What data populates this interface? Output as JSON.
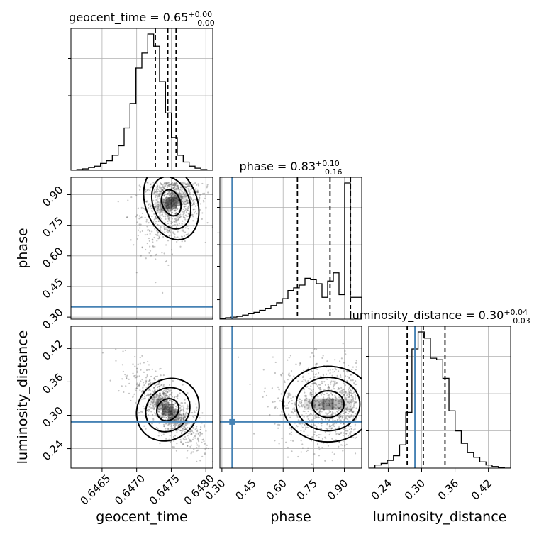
{
  "chart_data": {
    "type": "corner",
    "parameters": [
      "geocent_time",
      "phase",
      "luminosity_distance"
    ],
    "titles": [
      {
        "name": "geocent_time",
        "median": "0.65",
        "plus": "+0.00",
        "minus": "−0.00"
      },
      {
        "name": "phase",
        "median": "0.83",
        "plus": "+0.10",
        "minus": "−0.16"
      },
      {
        "name": "luminosity_distance",
        "median": "0.30",
        "plus": "+0.04",
        "minus": "−0.03"
      }
    ],
    "axis_labels": {
      "geocent_time": "geocent_time",
      "phase": "phase",
      "luminosity_distance": "luminosity_distance"
    },
    "ranges": {
      "geocent_time": [
        0.64605,
        0.6481
      ],
      "phase": [
        0.29,
        0.985
      ],
      "luminosity_distance": [
        0.205,
        0.46
      ]
    },
    "ticks": {
      "geocent_time": [
        "0.6465",
        "0.6470",
        "0.6475",
        "0.6480"
      ],
      "phase": [
        "0.30",
        "0.45",
        "0.60",
        "0.75",
        "0.90"
      ],
      "luminosity_distance": [
        "0.24",
        "0.30",
        "0.36",
        "0.42"
      ]
    },
    "truths": {
      "geocent_time": null,
      "phase": 0.35,
      "luminosity_distance": 0.288
    },
    "quantiles": {
      "geocent_time": [
        0.64727,
        0.64745,
        0.64757
      ],
      "phase": [
        0.67,
        0.83,
        0.93
      ],
      "luminosity_distance": [
        0.274,
        0.303,
        0.342
      ]
    },
    "histograms": {
      "geocent_time": [
        0,
        0.5,
        1,
        2,
        3,
        5,
        7,
        11,
        18,
        31,
        49,
        75,
        86,
        100,
        91,
        65,
        42,
        24,
        11,
        6,
        3,
        1.5,
        0.5,
        0
      ],
      "phase": [
        0.5,
        1,
        1.5,
        2,
        3,
        4,
        5,
        6.5,
        8,
        10,
        12,
        15,
        21,
        23,
        25,
        30,
        29,
        26,
        16,
        28,
        34,
        18,
        100,
        16,
        16
      ],
      "luminosity_distance": [
        0,
        2,
        3,
        5,
        8,
        15,
        36,
        77,
        88,
        84,
        71,
        70,
        58,
        37,
        24,
        16,
        10,
        7,
        4,
        2,
        1,
        0.5,
        0
      ]
    },
    "grid": true
  }
}
